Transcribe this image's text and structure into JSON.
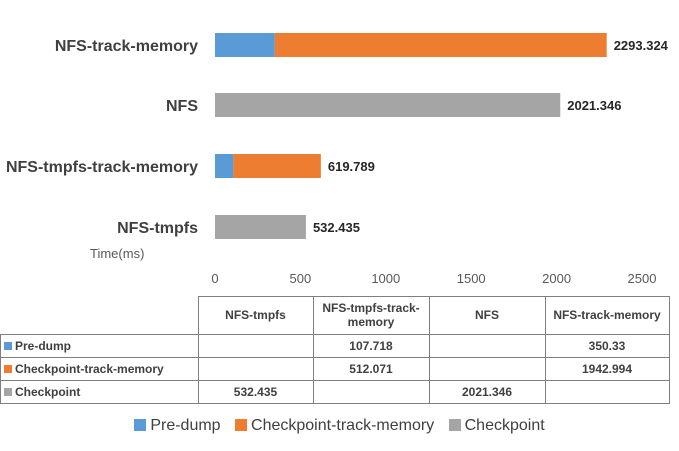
{
  "chart_data": {
    "type": "bar",
    "orientation": "horizontal",
    "stacked": true,
    "categories": [
      "NFS-track-memory",
      "NFS",
      "NFS-tmpfs-track-memory",
      "NFS-tmpfs"
    ],
    "series": [
      {
        "name": "Pre-dump",
        "color": "#5b9bd5",
        "values": [
          350.33,
          null,
          107.718,
          null
        ]
      },
      {
        "name": "Checkpoint-track-memory",
        "color": "#ed7d31",
        "values": [
          1942.994,
          null,
          512.071,
          null
        ]
      },
      {
        "name": "Checkpoint",
        "color": "#a5a5a5",
        "values": [
          null,
          2021.346,
          null,
          532.435
        ]
      }
    ],
    "totals": [
      2293.324,
      2021.346,
      619.789,
      532.435
    ],
    "total_labels": [
      "2293.324",
      "2021.346",
      "619.789",
      "532.435"
    ],
    "xlabel": "Time(ms)",
    "xlim": [
      0,
      2500
    ],
    "xticks": [
      0,
      500,
      1000,
      1500,
      2000,
      2500
    ],
    "legend_position": "bottom",
    "grid": false
  },
  "table": {
    "columns": [
      "NFS-tmpfs",
      "NFS-tmpfs-track-memory",
      "NFS",
      "NFS-track-memory"
    ],
    "rows": [
      {
        "label": "Pre-dump",
        "color": "#5b9bd5",
        "cells": [
          "",
          "107.718",
          "",
          "350.33"
        ]
      },
      {
        "label": "Checkpoint-track-memory",
        "color": "#ed7d31",
        "cells": [
          "",
          "512.071",
          "",
          "1942.994"
        ]
      },
      {
        "label": "Checkpoint",
        "color": "#a5a5a5",
        "cells": [
          "532.435",
          "",
          "2021.346",
          ""
        ]
      }
    ]
  },
  "legend": [
    {
      "label": "Pre-dump",
      "color": "#5b9bd5"
    },
    {
      "label": "Checkpoint-track-memory",
      "color": "#ed7d31"
    },
    {
      "label": "Checkpoint",
      "color": "#a5a5a5"
    }
  ]
}
